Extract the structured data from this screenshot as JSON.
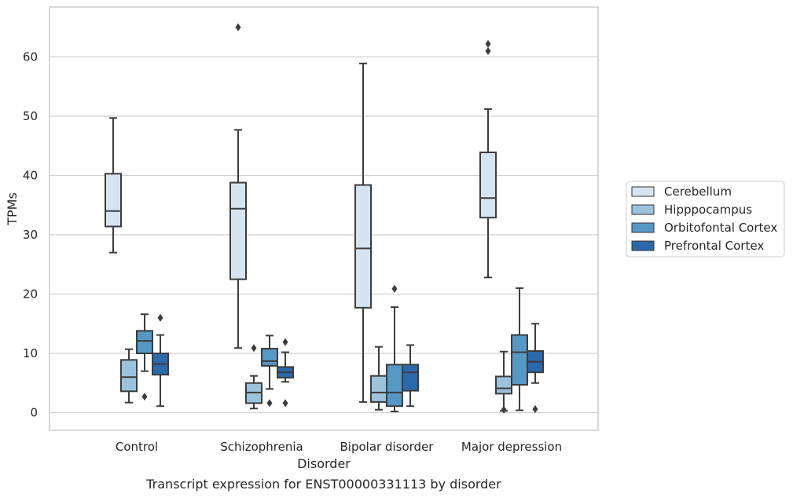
{
  "chart_data": {
    "type": "box",
    "title": "",
    "caption": "Transcript expression for ENST00000331113 by disorder",
    "xlabel": "Disorder",
    "ylabel": "TPMs",
    "ylim": [
      -3,
      68
    ],
    "yticks": [
      0,
      10,
      20,
      30,
      40,
      50,
      60
    ],
    "grid": "horizontal",
    "legend_placement": "right",
    "categories": [
      "Control",
      "Schizophrenia",
      "Bipolar disorder",
      "Major depression"
    ],
    "series": [
      {
        "name": "Cerebellum",
        "color": "#d6e4f2",
        "boxes": [
          {
            "whisker_low": 27.0,
            "q1": 31.4,
            "median": 34.0,
            "q3": 40.3,
            "whisker_high": 49.7,
            "outliers": []
          },
          {
            "whisker_low": 10.9,
            "q1": 22.5,
            "median": 34.4,
            "q3": 38.8,
            "whisker_high": 47.7,
            "outliers": [
              65.0
            ]
          },
          {
            "whisker_low": 1.8,
            "q1": 17.7,
            "median": 27.7,
            "q3": 38.4,
            "whisker_high": 58.9,
            "outliers": []
          },
          {
            "whisker_low": 22.8,
            "q1": 32.9,
            "median": 36.2,
            "q3": 43.9,
            "whisker_high": 51.2,
            "outliers": [
              61.0,
              62.2
            ]
          }
        ]
      },
      {
        "name": "Hipppocampus",
        "color": "#9bc3dd",
        "boxes": [
          {
            "whisker_low": 1.7,
            "q1": 3.6,
            "median": 6.0,
            "q3": 8.9,
            "whisker_high": 10.7,
            "outliers": []
          },
          {
            "whisker_low": 0.7,
            "q1": 1.6,
            "median": 3.4,
            "q3": 5.0,
            "whisker_high": 6.2,
            "outliers": [
              10.9
            ]
          },
          {
            "whisker_low": 0.5,
            "q1": 1.8,
            "median": 3.4,
            "q3": 6.2,
            "whisker_high": 11.1,
            "outliers": []
          },
          {
            "whisker_low": 0.3,
            "q1": 3.2,
            "median": 4.1,
            "q3": 6.1,
            "whisker_high": 10.3,
            "outliers": [
              0.5
            ]
          }
        ]
      },
      {
        "name": "Orbitofontal Cortex",
        "color": "#5698c5",
        "boxes": [
          {
            "whisker_low": 7.0,
            "q1": 10.0,
            "median": 12.1,
            "q3": 13.8,
            "whisker_high": 16.6,
            "outliers": [
              2.7
            ]
          },
          {
            "whisker_low": 4.0,
            "q1": 7.9,
            "median": 8.7,
            "q3": 10.8,
            "whisker_high": 13.0,
            "outliers": [
              1.6
            ]
          },
          {
            "whisker_low": 0.2,
            "q1": 1.1,
            "median": 3.4,
            "q3": 8.1,
            "whisker_high": 17.8,
            "outliers": [
              20.9
            ]
          },
          {
            "whisker_low": 0.4,
            "q1": 4.7,
            "median": 10.2,
            "q3": 13.1,
            "whisker_high": 21.0,
            "outliers": []
          }
        ]
      },
      {
        "name": "Prefrontal Cortex",
        "color": "#2a6aac",
        "boxes": [
          {
            "whisker_low": 1.1,
            "q1": 6.4,
            "median": 8.2,
            "q3": 10.0,
            "whisker_high": 13.1,
            "outliers": [
              16.0
            ]
          },
          {
            "whisker_low": 5.2,
            "q1": 5.9,
            "median": 6.8,
            "q3": 7.7,
            "whisker_high": 10.2,
            "outliers": [
              11.9,
              1.6
            ]
          },
          {
            "whisker_low": 1.1,
            "q1": 3.7,
            "median": 6.8,
            "q3": 8.1,
            "whisker_high": 11.4,
            "outliers": []
          },
          {
            "whisker_low": 5.0,
            "q1": 6.8,
            "median": 8.6,
            "q3": 10.4,
            "whisker_high": 15.0,
            "outliers": [
              0.6
            ]
          }
        ]
      }
    ]
  }
}
